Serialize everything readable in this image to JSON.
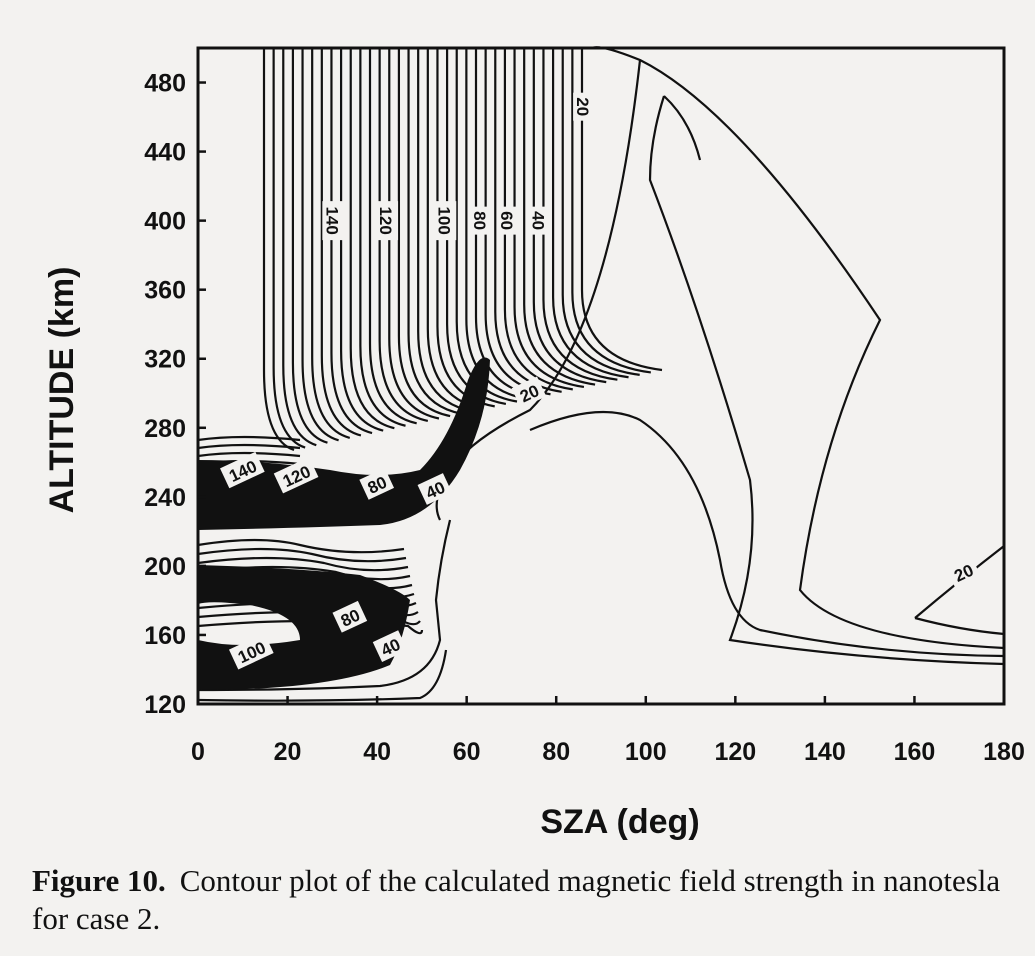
{
  "chart_data": {
    "type": "contour",
    "xlabel": "SZA (deg)",
    "ylabel": "ALTITUDE (km)",
    "xlim": [
      0,
      180
    ],
    "ylim": [
      120,
      500
    ],
    "xticks": [
      0,
      20,
      40,
      60,
      80,
      100,
      120,
      140,
      160,
      180
    ],
    "yticks": [
      120,
      160,
      200,
      240,
      280,
      320,
      360,
      400,
      440,
      480
    ],
    "contour_labels": [
      {
        "text": "140",
        "x": 30,
        "y": 400
      },
      {
        "text": "120",
        "x": 42,
        "y": 400
      },
      {
        "text": "100",
        "x": 55,
        "y": 400
      },
      {
        "text": "80",
        "x": 63,
        "y": 400
      },
      {
        "text": "60",
        "x": 69,
        "y": 400
      },
      {
        "text": "40",
        "x": 76,
        "y": 400
      },
      {
        "text": "20",
        "x": 86,
        "y": 466
      },
      {
        "text": "20",
        "x": 74,
        "y": 300
      },
      {
        "text": "140",
        "x": 10,
        "y": 255
      },
      {
        "text": "120",
        "x": 22,
        "y": 252
      },
      {
        "text": "80",
        "x": 40,
        "y": 247
      },
      {
        "text": "40",
        "x": 53,
        "y": 244
      },
      {
        "text": "80",
        "x": 34,
        "y": 170
      },
      {
        "text": "100",
        "x": 12,
        "y": 150
      },
      {
        "text": "40",
        "x": 43,
        "y": 153
      },
      {
        "text": "20",
        "x": 171,
        "y": 196
      }
    ]
  },
  "caption": {
    "label": "Figure 10.",
    "text": "Contour plot of the calculated magnetic field strength in nanotesla for case 2."
  }
}
